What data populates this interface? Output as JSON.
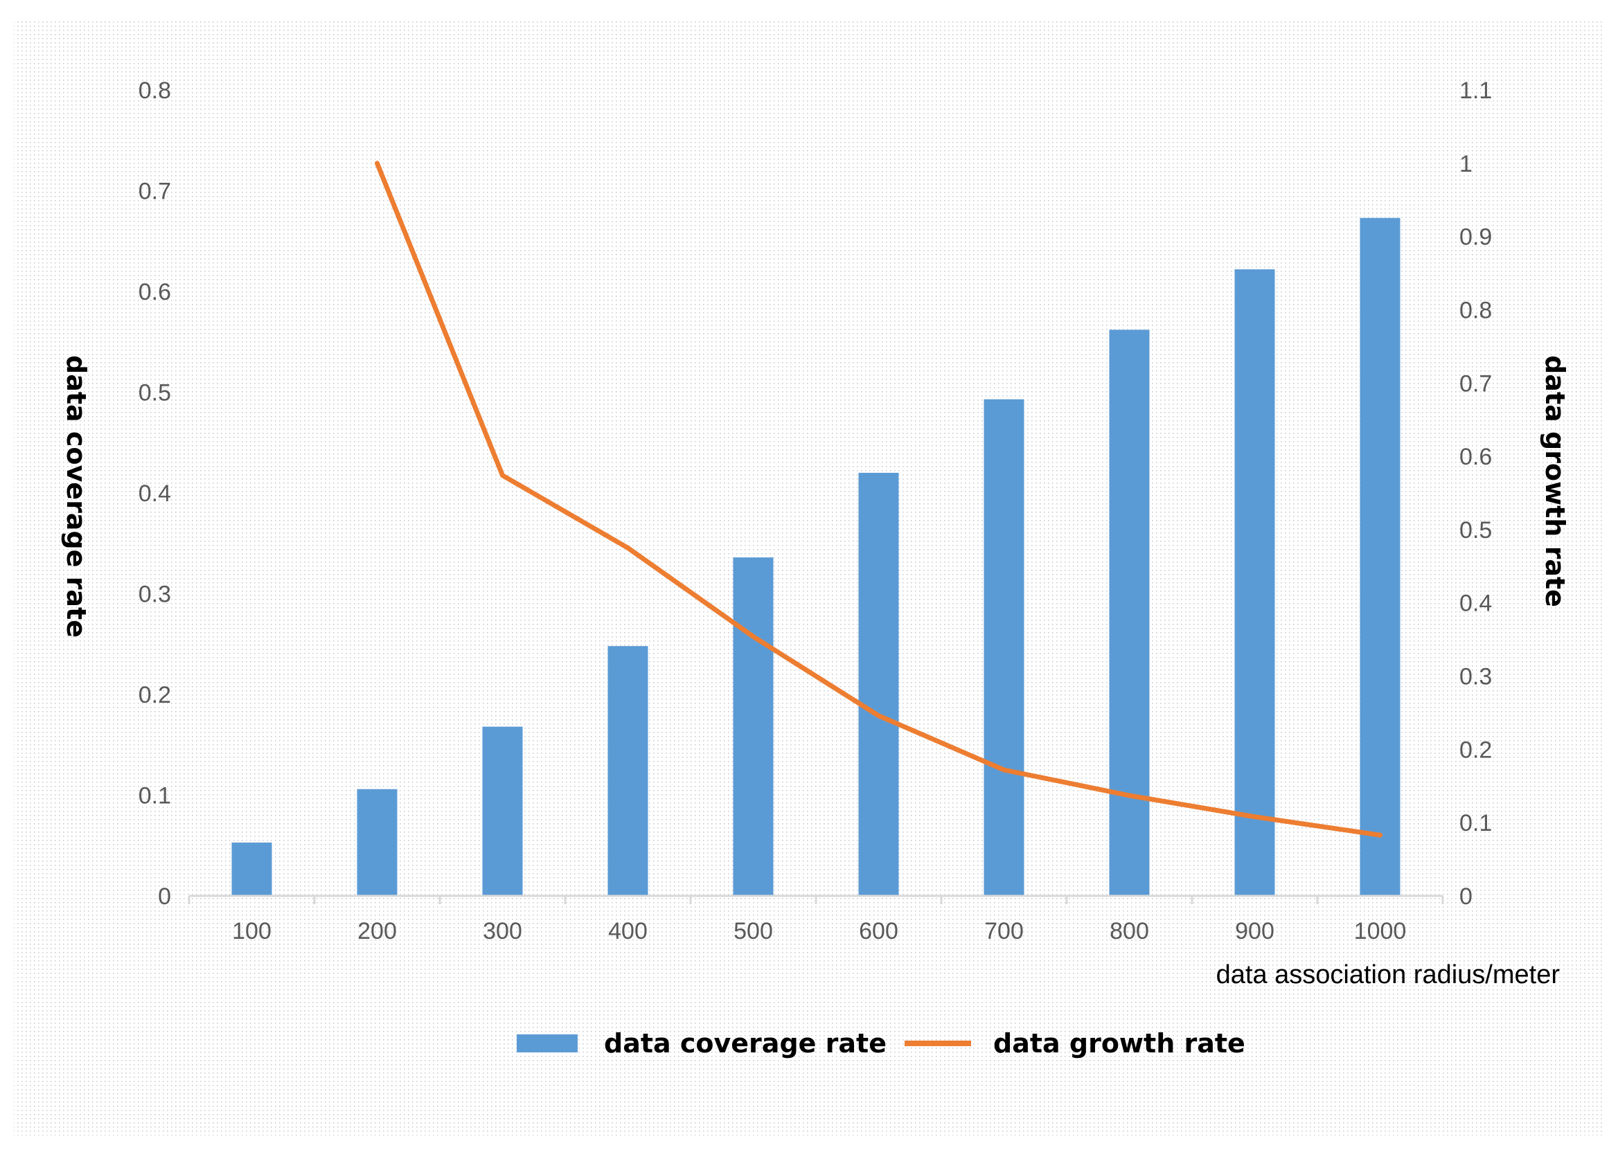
{
  "chart_data": {
    "type": "bar+line",
    "categories": [
      "100",
      "200",
      "300",
      "400",
      "500",
      "600",
      "700",
      "800",
      "900",
      "1000"
    ],
    "series": [
      {
        "name": "data coverage rate",
        "type": "bar",
        "axis": "left",
        "color": "#5B9BD5",
        "values": [
          0.053,
          0.106,
          0.168,
          0.248,
          0.336,
          0.42,
          0.493,
          0.562,
          0.622,
          0.673
        ]
      },
      {
        "name": "data growth rate",
        "type": "line",
        "axis": "right",
        "color": "#ED7D31",
        "values": [
          null,
          1.0,
          0.574,
          0.475,
          0.354,
          0.246,
          0.172,
          0.137,
          0.108,
          0.083
        ]
      }
    ],
    "y_left": {
      "label": "data coverage rate",
      "ylim": [
        0,
        0.8
      ],
      "ticks": [
        "0",
        "0.1",
        "0.2",
        "0.3",
        "0.4",
        "0.5",
        "0.6",
        "0.7",
        "0.8"
      ]
    },
    "y_right": {
      "label": "data growth rate",
      "ylim": [
        0,
        1.1
      ],
      "ticks": [
        "0",
        "0.1",
        "0.2",
        "0.3",
        "0.4",
        "0.5",
        "0.6",
        "0.7",
        "0.8",
        "0.9",
        "1",
        "1.1"
      ]
    },
    "xlabel": "data association radius/meter",
    "legend": {
      "position": "bottom",
      "entries": [
        "data coverage rate",
        "data growth rate"
      ]
    },
    "grid": false
  }
}
